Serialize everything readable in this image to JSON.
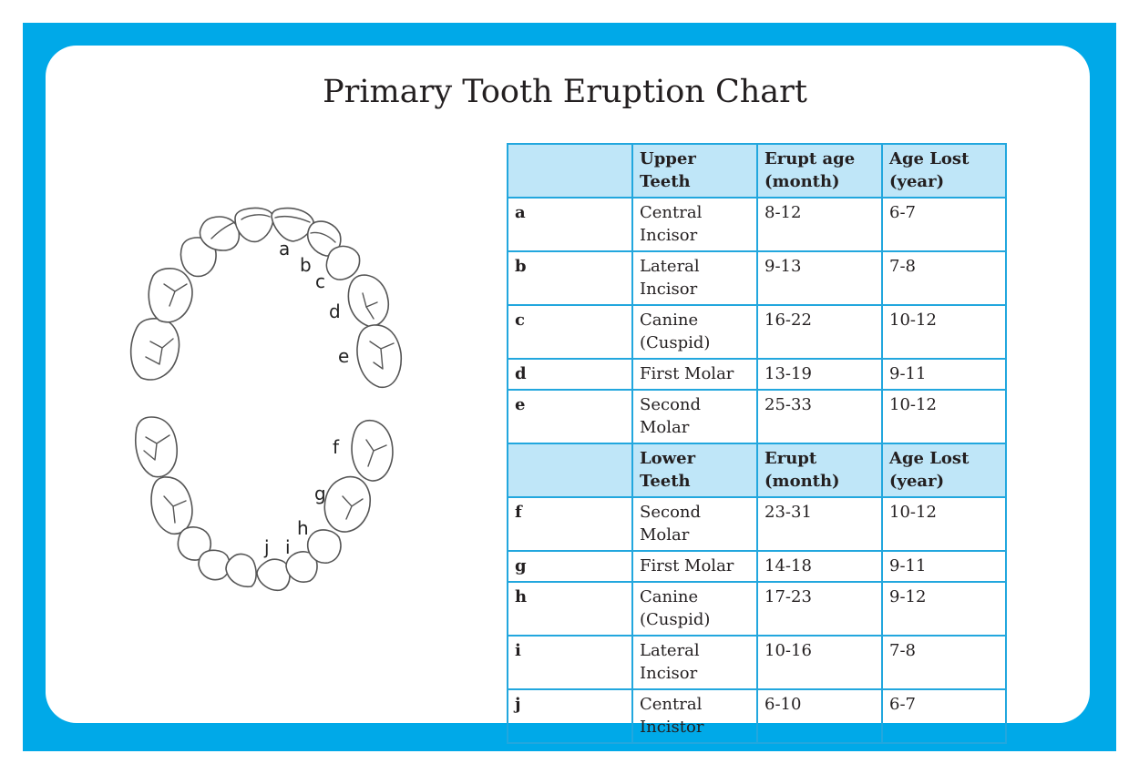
{
  "title": "Primary Tooth Eruption Chart",
  "diagram_labels": {
    "a": "a",
    "b": "b",
    "c": "c",
    "d": "d",
    "e": "e",
    "f": "f",
    "g": "g",
    "h": "h",
    "i": "i",
    "j": "j"
  },
  "upper_header": [
    "",
    "Upper Teeth",
    "Erupt age (month)",
    "Age Lost (year)"
  ],
  "upper_rows": [
    [
      "a",
      "Central Incisor",
      "8-12",
      "6-7"
    ],
    [
      "b",
      "Lateral Incisor",
      "9-13",
      "7-8"
    ],
    [
      "c",
      "Canine (Cuspid)",
      "16-22",
      "10-12"
    ],
    [
      "d",
      "First Molar",
      "13-19",
      "9-11"
    ],
    [
      "e",
      "Second Molar",
      "25-33",
      "10-12"
    ]
  ],
  "lower_header": [
    "",
    "Lower Teeth",
    "Erupt (month)",
    "Age Lost (year)"
  ],
  "lower_rows": [
    [
      "f",
      "Second Molar",
      "23-31",
      "10-12"
    ],
    [
      "g",
      "First Molar",
      "14-18",
      "9-11"
    ],
    [
      "h",
      "Canine (Cuspid)",
      "17-23",
      "9-12"
    ],
    [
      "i",
      "Lateral Incisor",
      "10-16",
      "7-8"
    ],
    [
      "j",
      "Central Incistor",
      "6-10",
      "6-7"
    ]
  ],
  "colors": {
    "frame": "#00a9e8",
    "header_fill": "#bfe6f8",
    "table_border": "#22a7de"
  }
}
